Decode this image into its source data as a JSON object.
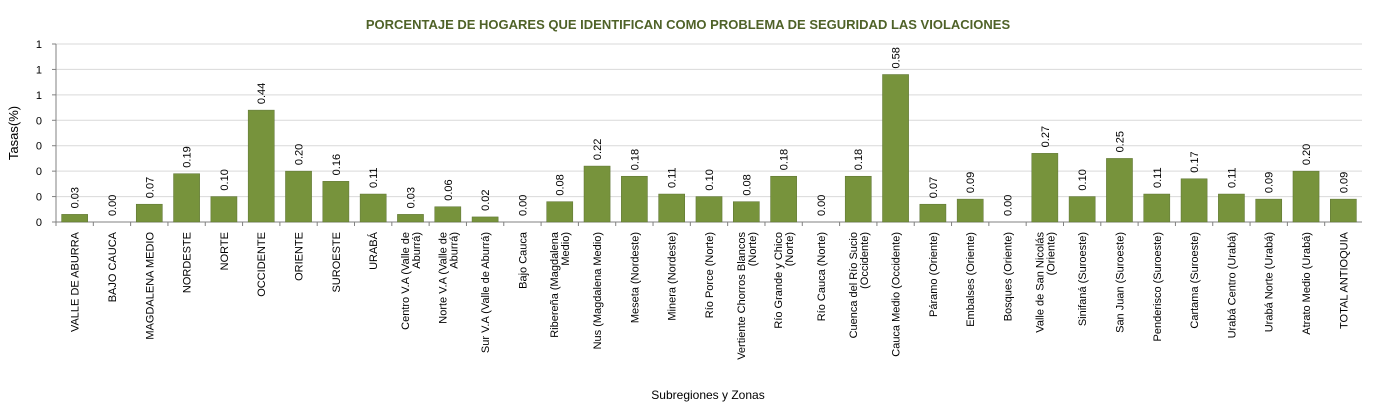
{
  "chart_data": {
    "type": "bar",
    "title": "PORCENTAJE DE HOGARES QUE IDENTIFICAN COMO PROBLEMA DE SEGURIDAD LAS VIOLACIONES",
    "x_label": "Subregiones y Zonas",
    "y_label": "Tasas(%)",
    "categories": [
      "VALLE DE ABURRA",
      "BAJO CAUCA",
      "MAGDALENA MEDIO",
      "NORDESTE",
      "NORTE",
      "OCCIDENTE",
      "ORIENTE",
      "SUROESTE",
      "URABÁ",
      "Centro V.A (Valle de Aburrá)",
      "Norte V.A (Valle de Aburrá)",
      "Sur V.A (Valle de Aburrá)",
      "Bajo Cauca",
      "Ribereña (Magdalena Medio)",
      "Nus (Magdalena Medio)",
      "Meseta (Nordeste)",
      "Minera (Nordeste)",
      "Río Porce (Norte)",
      "Vertiente Chorros Blancos (Norte)",
      "Río Grande y Chico (Norte)",
      "Río Cauca (Norte)",
      "Cuenca del Río Sucio (Occidente)",
      "Cauca Medio (Occidente)",
      "Páramo (Oriente)",
      "Embalses (Oriente)",
      "Bosques (Oriente)",
      "Valle de San Nicolás (Oriente)",
      "Sinifaná (Suroeste)",
      "San Juan (Suroeste)",
      "Penderisco (Suroeste)",
      "Cartama (Suroeste)",
      "Urabá Centro (Urabá)",
      "Urabá Norte (Urabá)",
      "Atrato Medio (Urabá)",
      "TOTAL ANTIOQUIA"
    ],
    "values": [
      0.03,
      0,
      0.07,
      0.19,
      0.1,
      0.44,
      0.2,
      0.16,
      0.11,
      0.03,
      0.06,
      0.02,
      0,
      0.08,
      0.22,
      0.18,
      0.11,
      0.1,
      0.08,
      0.18,
      0,
      0.18,
      0.58,
      0.07,
      0.09,
      0,
      0.27,
      0.1,
      0.25,
      0.11,
      0.17,
      0.11,
      0.09,
      0.2,
      0.09
    ],
    "value_labels": [
      "0.03",
      "0.00",
      "0.07",
      "0.19",
      "0.10",
      "0.44",
      "0.20",
      "0.16",
      "0.11",
      "0.03",
      "0.06",
      "0.02",
      "0.00",
      "0.08",
      "0.22",
      "0.18",
      "0.11",
      "0.10",
      "0.08",
      "0.18",
      "0.00",
      "0.18",
      "0.58",
      "0.07",
      "0.09",
      "0.00",
      "0.27",
      "0.10",
      "0.25",
      "0.11",
      "0.17",
      "0.11",
      "0.09",
      "0.20",
      "0.09"
    ],
    "color": "#77933c",
    "ylim": [
      0,
      0.7
    ],
    "yticks": [
      0,
      {
        "value": 0.1,
        "label": "0"
      },
      {
        "value": 0.2,
        "label": "0"
      },
      {
        "value": 0.3,
        "label": "0"
      },
      {
        "value": 0.4,
        "label": "0"
      },
      {
        "value": 0.5,
        "label": "1"
      },
      {
        "value": 0.6,
        "label": "1"
      },
      {
        "value": 0.7,
        "label": "1"
      }
    ],
    "grid": true
  }
}
